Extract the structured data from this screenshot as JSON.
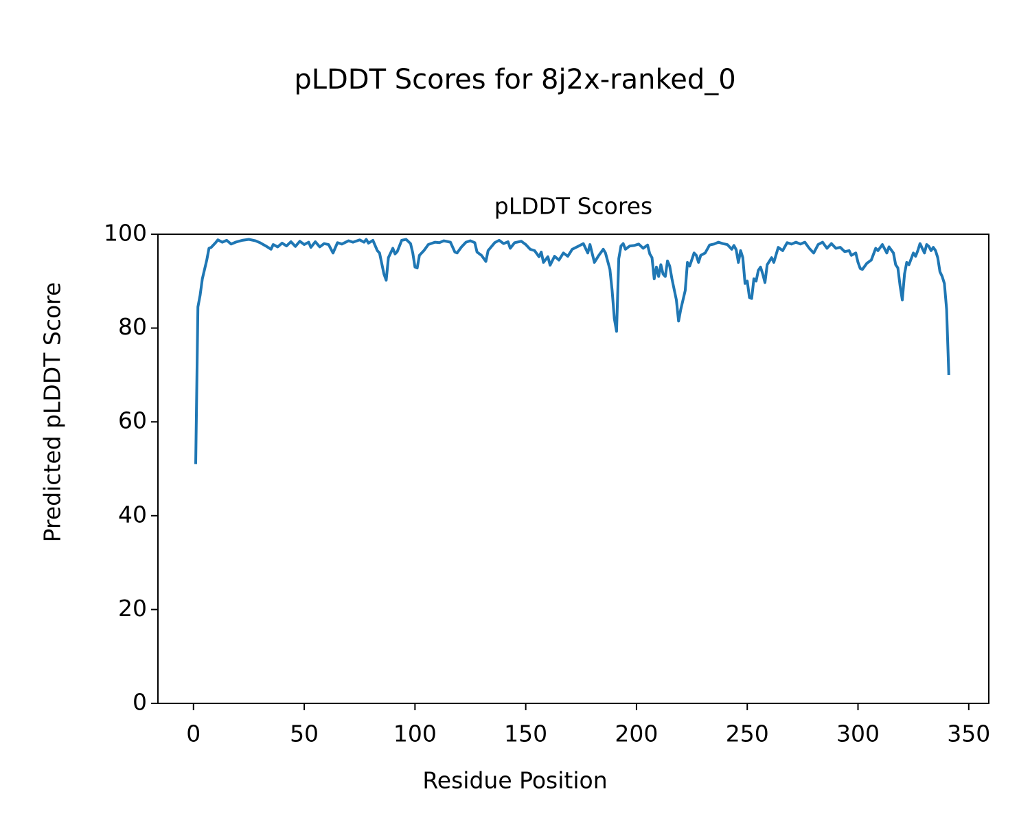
{
  "chart_data": {
    "type": "line",
    "title": "pLDDT Scores for 8j2x-ranked_0",
    "subtitle": "pLDDT Scores",
    "x_label": "Residue Position",
    "y_label": "Predicted pLDDT Score",
    "color": "#1f77b4",
    "xlim": [
      -16.05,
      359.05
    ],
    "ylim": [
      0,
      100
    ],
    "xticks": [
      0,
      50,
      100,
      150,
      200,
      250,
      300,
      350
    ],
    "yticks": [
      0,
      20,
      40,
      60,
      80,
      100
    ],
    "grid": false,
    "x": [
      1,
      2,
      3,
      4,
      5,
      6,
      7,
      8,
      10,
      11,
      13,
      15,
      17,
      19,
      22,
      25,
      28,
      30,
      33,
      35,
      36,
      38,
      40,
      42,
      44,
      46,
      48,
      50,
      52,
      53,
      55,
      57,
      59,
      61,
      63,
      65,
      67,
      70,
      72,
      75,
      77,
      78,
      79,
      81,
      83,
      84,
      86,
      87,
      88,
      90,
      91,
      92,
      94,
      96,
      98,
      99,
      100,
      101,
      102,
      104,
      106,
      109,
      111,
      113,
      116,
      118,
      119,
      121,
      123,
      125,
      127,
      128,
      130,
      132,
      133,
      136,
      138,
      140,
      142,
      143,
      145,
      148,
      150,
      152,
      154,
      156,
      157,
      158,
      160,
      161,
      163,
      165,
      167,
      169,
      171,
      174,
      176,
      178,
      179,
      181,
      183,
      185,
      186,
      188,
      189,
      190,
      191,
      192,
      193,
      194,
      195,
      197,
      199,
      201,
      203,
      205,
      206,
      207,
      208,
      209,
      210,
      211,
      212,
      213,
      214,
      215,
      216,
      218,
      219,
      220,
      222,
      223,
      224,
      226,
      227,
      228,
      229,
      231,
      233,
      235,
      237,
      239,
      241,
      243,
      244,
      245,
      246,
      247,
      248,
      249,
      250,
      251,
      252,
      253,
      254,
      255,
      256,
      257,
      258,
      259,
      261,
      262,
      264,
      266,
      268,
      270,
      272,
      274,
      276,
      278,
      280,
      282,
      284,
      286,
      288,
      290,
      292,
      294,
      296,
      297,
      299,
      300,
      301,
      302,
      304,
      306,
      308,
      309,
      311,
      313,
      314,
      316,
      317,
      318,
      319,
      320,
      321,
      322,
      323,
      325,
      326,
      327,
      328,
      329,
      330,
      331,
      332,
      333,
      334,
      335,
      336,
      337,
      338,
      339,
      340,
      341
    ],
    "values": [
      51,
      84.5,
      87,
      90.5,
      92.5,
      94.5,
      97,
      97.2,
      98.2,
      98.8,
      98.3,
      98.7,
      97.9,
      98.3,
      98.7,
      98.9,
      98.6,
      98.2,
      97.4,
      96.8,
      97.8,
      97.3,
      98.1,
      97.5,
      98.4,
      97.4,
      98.5,
      97.8,
      98.3,
      97.2,
      98.4,
      97.3,
      98,
      97.8,
      96,
      98.2,
      97.9,
      98.6,
      98.3,
      98.8,
      98.3,
      98.9,
      98.1,
      98.7,
      96.5,
      96,
      91.5,
      90.2,
      95,
      97,
      95.8,
      96.3,
      98.7,
      98.9,
      98,
      96,
      93,
      92.8,
      95.5,
      96.5,
      97.8,
      98.3,
      98.2,
      98.6,
      98.3,
      96.2,
      96,
      97.3,
      98.3,
      98.6,
      98.2,
      96.2,
      95.5,
      94.2,
      96.5,
      98.2,
      98.7,
      98,
      98.4,
      97,
      98.2,
      98.5,
      97.8,
      96.8,
      96.5,
      95.2,
      96.2,
      94,
      95.2,
      93.4,
      95.3,
      94.5,
      96,
      95.3,
      96.8,
      97.5,
      98,
      96,
      97.8,
      94,
      95.5,
      96.8,
      96,
      92.5,
      88,
      82,
      79.3,
      94.8,
      97.5,
      98,
      96.8,
      97.5,
      97.6,
      97.9,
      97,
      97.7,
      95.8,
      95,
      90.5,
      93,
      91,
      93.5,
      91.5,
      91,
      94.3,
      93.2,
      90.5,
      86,
      81.5,
      84,
      88,
      94,
      93.2,
      96,
      95.5,
      94,
      95.5,
      96,
      97.7,
      97.9,
      98.3,
      98,
      97.8,
      96.8,
      97.6,
      96.7,
      94,
      96.5,
      95,
      89.5,
      90,
      86.5,
      86.3,
      90.5,
      90,
      92.3,
      93,
      91.5,
      89.7,
      93.5,
      95,
      94,
      97.2,
      96.5,
      98.2,
      97.9,
      98.3,
      97.9,
      98.3,
      97,
      96,
      97.8,
      98.3,
      97,
      98,
      97,
      97.2,
      96.3,
      96.5,
      95.5,
      96,
      94,
      92.7,
      92.5,
      93.8,
      94.5,
      97,
      96.5,
      97.8,
      96,
      97.3,
      96,
      93.5,
      92.8,
      89,
      86,
      91.5,
      94,
      93.5,
      96,
      95.3,
      96.5,
      98,
      97,
      96,
      97.8,
      97.4,
      96.5,
      97.2,
      96.5,
      95,
      92,
      91,
      89.5,
      84,
      70
    ]
  }
}
